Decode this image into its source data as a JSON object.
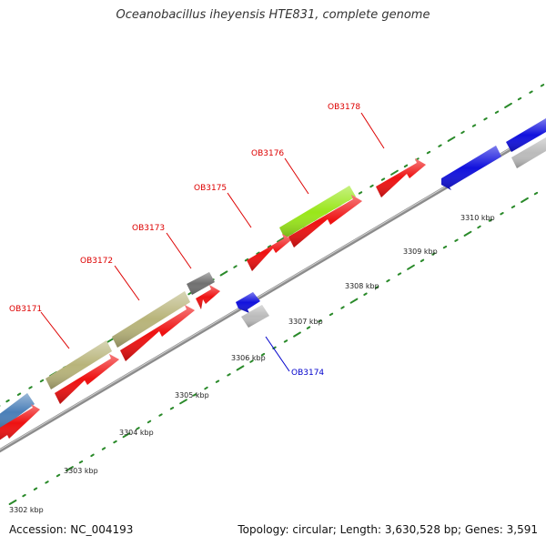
{
  "title": "Oceanobacillus iheyensis HTE831, complete genome",
  "footer": {
    "accession": "Accession: NC_004193",
    "topology": "Topology: circular; Length: 3,630,528 bp; Genes: 3,591"
  },
  "ruler_labels": [
    "3302 kbp",
    "3303 kbp",
    "3304 kbp",
    "3305 kbp",
    "3306 kbp",
    "3307 kbp",
    "3308 kbp",
    "3309 kbp",
    "3310 kbp"
  ],
  "gene_labels": [
    {
      "text": "OB3171",
      "color": "#dd0000"
    },
    {
      "text": "OB3172",
      "color": "#dd0000"
    },
    {
      "text": "OB3173",
      "color": "#dd0000"
    },
    {
      "text": "OB3174",
      "color": "#0000cc"
    },
    {
      "text": "OB3175",
      "color": "#dd0000"
    },
    {
      "text": "OB3176",
      "color": "#dd0000"
    },
    {
      "text": "OB3178",
      "color": "#dd0000"
    }
  ],
  "colors": {
    "backbone": "#8c8c8c",
    "ticks": "#2a8a2a",
    "cds": "#ee1111",
    "khaki": "#b8b47a",
    "lime": "#99e61a",
    "steelblue": "#4a7fb8",
    "blue": "#1111dd",
    "gray": "#bbbbbb",
    "darkgray": "#707070"
  }
}
